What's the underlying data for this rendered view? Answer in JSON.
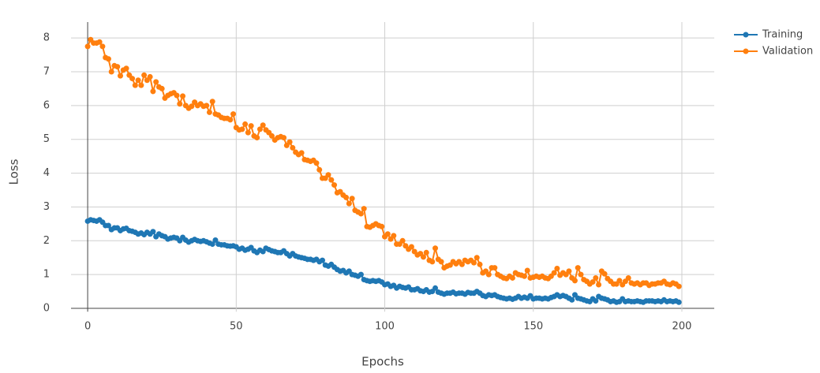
{
  "chart_data": {
    "type": "line",
    "xlabel": "Epochs",
    "ylabel": "Loss",
    "x": [
      0,
      1,
      2,
      3,
      4,
      5,
      6,
      7,
      8,
      9,
      10,
      11,
      12,
      13,
      14,
      15,
      16,
      17,
      18,
      19,
      20,
      21,
      22,
      23,
      24,
      25,
      26,
      27,
      28,
      29,
      30,
      31,
      32,
      33,
      34,
      35,
      36,
      37,
      38,
      39,
      40,
      41,
      42,
      43,
      44,
      45,
      46,
      47,
      48,
      49,
      50,
      51,
      52,
      53,
      54,
      55,
      56,
      57,
      58,
      59,
      60,
      61,
      62,
      63,
      64,
      65,
      66,
      67,
      68,
      69,
      70,
      71,
      72,
      73,
      74,
      75,
      76,
      77,
      78,
      79,
      80,
      81,
      82,
      83,
      84,
      85,
      86,
      87,
      88,
      89,
      90,
      91,
      92,
      93,
      94,
      95,
      96,
      97,
      98,
      99,
      100,
      101,
      102,
      103,
      104,
      105,
      106,
      107,
      108,
      109,
      110,
      111,
      112,
      113,
      114,
      115,
      116,
      117,
      118,
      119,
      120,
      121,
      122,
      123,
      124,
      125,
      126,
      127,
      128,
      129,
      130,
      131,
      132,
      133,
      134,
      135,
      136,
      137,
      138,
      139,
      140,
      141,
      142,
      143,
      144,
      145,
      146,
      147,
      148,
      149,
      150,
      151,
      152,
      153,
      154,
      155,
      156,
      157,
      158,
      159,
      160,
      161,
      162,
      163,
      164,
      165,
      166,
      167,
      168,
      169,
      170,
      171,
      172,
      173,
      174,
      175,
      176,
      177,
      178,
      179,
      180,
      181,
      182,
      183,
      184,
      185,
      186,
      187,
      188,
      189,
      190,
      191,
      192,
      193,
      194,
      195,
      196,
      197,
      198,
      199
    ],
    "series": [
      {
        "name": "Training",
        "color": "#1f77b4",
        "values": [
          2.58,
          2.62,
          2.6,
          2.58,
          2.62,
          2.55,
          2.45,
          2.45,
          2.33,
          2.38,
          2.38,
          2.3,
          2.35,
          2.37,
          2.3,
          2.28,
          2.25,
          2.2,
          2.23,
          2.18,
          2.25,
          2.2,
          2.27,
          2.12,
          2.2,
          2.15,
          2.12,
          2.05,
          2.08,
          2.1,
          2.08,
          2.0,
          2.1,
          2.02,
          1.96,
          2.0,
          2.04,
          2.0,
          1.98,
          2.0,
          1.97,
          1.93,
          1.9,
          2.02,
          1.9,
          1.88,
          1.88,
          1.85,
          1.84,
          1.85,
          1.82,
          1.75,
          1.78,
          1.72,
          1.75,
          1.8,
          1.7,
          1.65,
          1.72,
          1.68,
          1.78,
          1.74,
          1.7,
          1.68,
          1.65,
          1.65,
          1.7,
          1.62,
          1.55,
          1.62,
          1.55,
          1.52,
          1.5,
          1.48,
          1.45,
          1.45,
          1.42,
          1.45,
          1.38,
          1.42,
          1.28,
          1.25,
          1.3,
          1.22,
          1.15,
          1.1,
          1.12,
          1.05,
          1.1,
          1.0,
          0.98,
          0.95,
          1.0,
          0.85,
          0.82,
          0.8,
          0.82,
          0.8,
          0.82,
          0.78,
          0.7,
          0.72,
          0.65,
          0.68,
          0.6,
          0.65,
          0.62,
          0.6,
          0.63,
          0.55,
          0.55,
          0.58,
          0.52,
          0.5,
          0.55,
          0.48,
          0.5,
          0.6,
          0.48,
          0.45,
          0.42,
          0.45,
          0.45,
          0.48,
          0.43,
          0.45,
          0.45,
          0.42,
          0.47,
          0.45,
          0.45,
          0.5,
          0.45,
          0.38,
          0.35,
          0.4,
          0.38,
          0.4,
          0.35,
          0.32,
          0.3,
          0.28,
          0.3,
          0.27,
          0.3,
          0.35,
          0.3,
          0.33,
          0.3,
          0.37,
          0.28,
          0.3,
          0.3,
          0.28,
          0.3,
          0.28,
          0.32,
          0.35,
          0.4,
          0.35,
          0.38,
          0.35,
          0.3,
          0.25,
          0.4,
          0.3,
          0.28,
          0.25,
          0.22,
          0.2,
          0.28,
          0.22,
          0.35,
          0.3,
          0.28,
          0.25,
          0.2,
          0.22,
          0.18,
          0.2,
          0.28,
          0.2,
          0.22,
          0.2,
          0.2,
          0.22,
          0.2,
          0.18,
          0.22,
          0.22,
          0.22,
          0.2,
          0.22,
          0.2,
          0.25,
          0.2,
          0.22,
          0.2,
          0.22,
          0.18
        ]
      },
      {
        "name": "Validation",
        "color": "#ff7f0e",
        "values": [
          7.75,
          7.95,
          7.85,
          7.85,
          7.88,
          7.75,
          7.42,
          7.38,
          7.0,
          7.18,
          7.15,
          6.88,
          7.05,
          7.1,
          6.9,
          6.8,
          6.6,
          6.75,
          6.6,
          6.9,
          6.75,
          6.85,
          6.42,
          6.7,
          6.55,
          6.5,
          6.22,
          6.3,
          6.35,
          6.38,
          6.3,
          6.05,
          6.28,
          6.0,
          5.92,
          5.98,
          6.1,
          6.0,
          6.05,
          5.98,
          6.0,
          5.8,
          6.12,
          5.75,
          5.72,
          5.65,
          5.62,
          5.62,
          5.58,
          5.75,
          5.35,
          5.28,
          5.3,
          5.45,
          5.2,
          5.4,
          5.1,
          5.05,
          5.3,
          5.42,
          5.28,
          5.2,
          5.1,
          4.98,
          5.05,
          5.08,
          5.05,
          4.82,
          4.92,
          4.75,
          4.62,
          4.55,
          4.6,
          4.4,
          4.38,
          4.35,
          4.38,
          4.3,
          4.1,
          3.85,
          3.85,
          3.95,
          3.8,
          3.65,
          3.42,
          3.45,
          3.35,
          3.28,
          3.1,
          3.25,
          2.9,
          2.85,
          2.8,
          2.95,
          2.42,
          2.4,
          2.45,
          2.5,
          2.45,
          2.42,
          2.12,
          2.2,
          2.05,
          2.15,
          1.9,
          1.9,
          2.0,
          1.85,
          1.75,
          1.82,
          1.68,
          1.58,
          1.62,
          1.52,
          1.65,
          1.42,
          1.38,
          1.78,
          1.45,
          1.38,
          1.2,
          1.25,
          1.28,
          1.38,
          1.32,
          1.38,
          1.3,
          1.42,
          1.38,
          1.42,
          1.35,
          1.5,
          1.3,
          1.05,
          1.1,
          1.0,
          1.2,
          1.2,
          1.0,
          0.95,
          0.9,
          0.88,
          0.95,
          0.9,
          1.05,
          1.0,
          0.98,
          0.95,
          1.12,
          0.9,
          0.92,
          0.95,
          0.92,
          0.95,
          0.9,
          0.88,
          0.95,
          1.05,
          1.18,
          0.98,
          1.05,
          1.0,
          1.1,
          0.9,
          0.82,
          1.2,
          1.0,
          0.85,
          0.8,
          0.72,
          0.78,
          0.9,
          0.7,
          1.1,
          1.02,
          0.88,
          0.8,
          0.72,
          0.72,
          0.82,
          0.7,
          0.8,
          0.9,
          0.75,
          0.72,
          0.75,
          0.7,
          0.75,
          0.75,
          0.68,
          0.72,
          0.72,
          0.75,
          0.75,
          0.8,
          0.72,
          0.7,
          0.75,
          0.72,
          0.65
        ]
      }
    ],
    "xlim": [
      -5.6,
      210.9
    ],
    "ylim": [
      -0.1,
      8.47
    ],
    "xticks": [
      0,
      50,
      100,
      150,
      200
    ],
    "yticks": [
      0,
      1,
      2,
      3,
      4,
      5,
      6,
      7,
      8
    ],
    "grid": true,
    "legend": "top-right"
  }
}
